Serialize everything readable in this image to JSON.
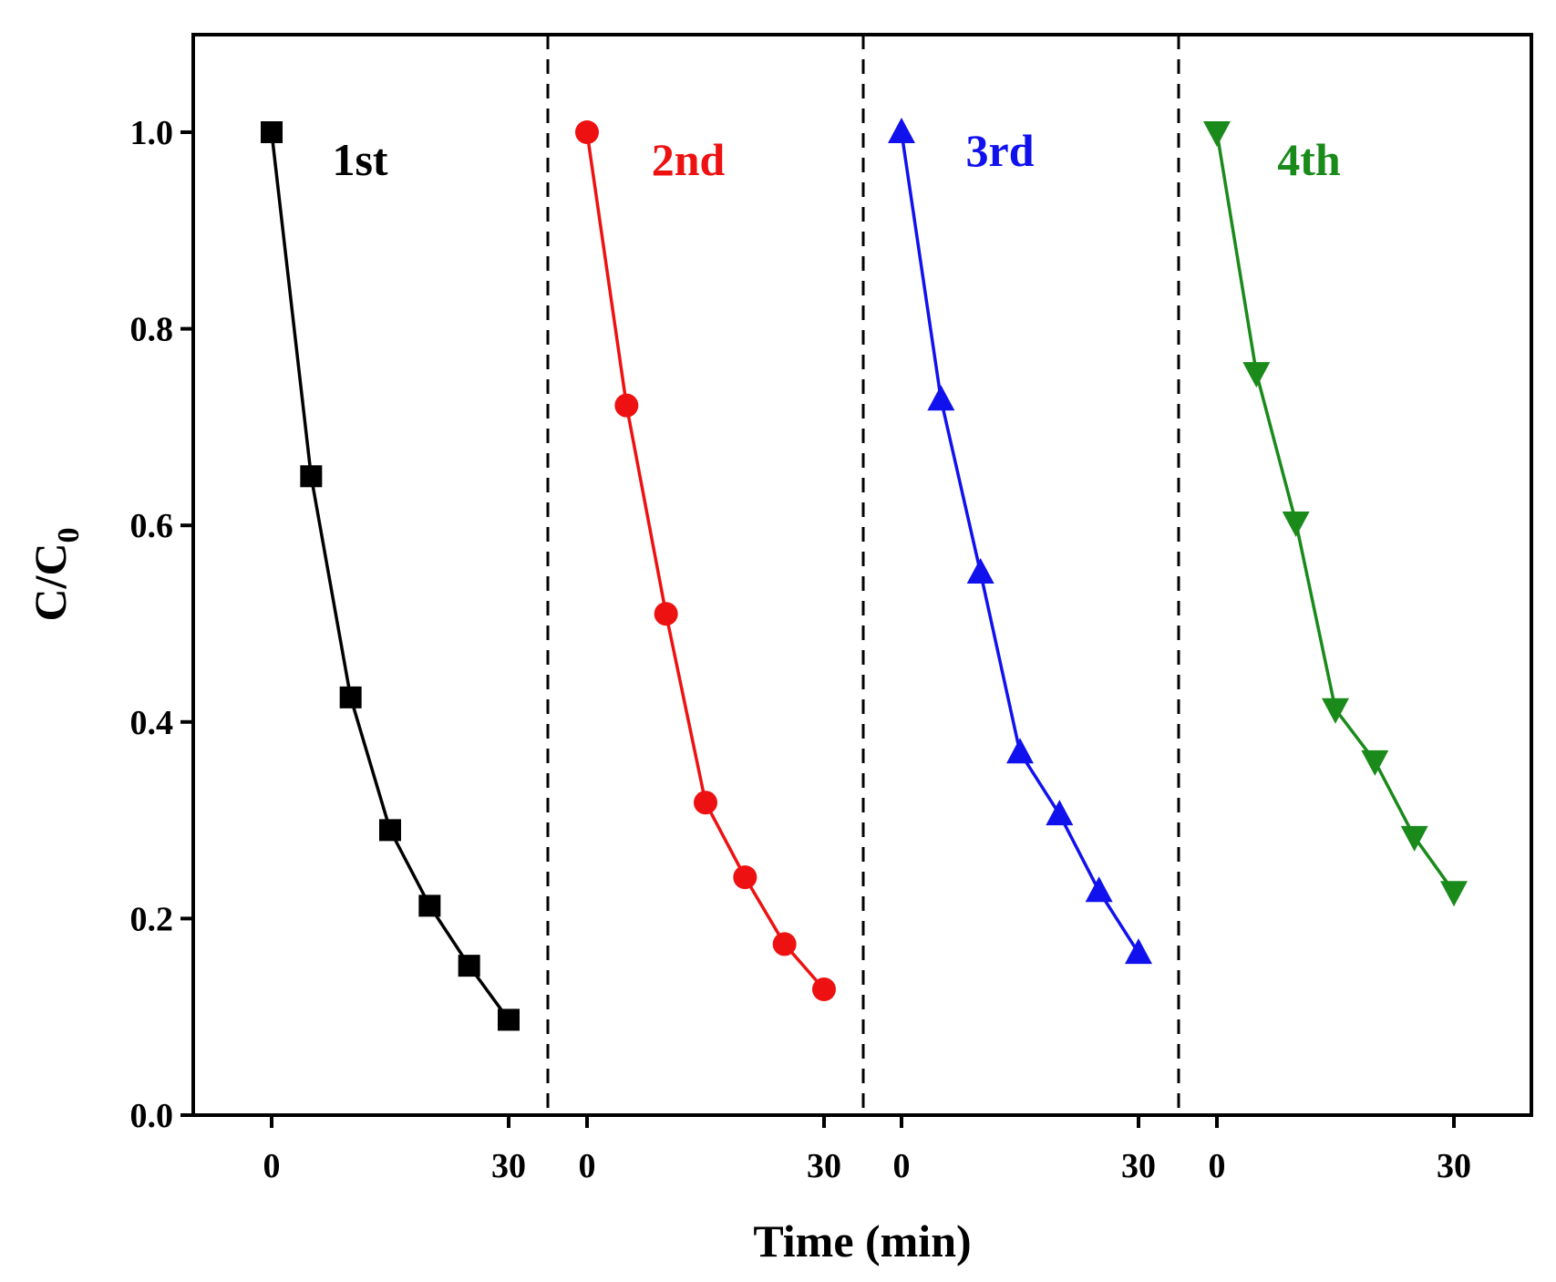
{
  "chart_data": {
    "type": "line",
    "title": "",
    "xlabel": "Time (min)",
    "ylabel_main": "C/C",
    "ylabel_sub": "0",
    "ylim": [
      0.0,
      1.1
    ],
    "y_ticks": [
      "0.0",
      "0.2",
      "0.4",
      "0.6",
      "0.8",
      "1.0"
    ],
    "y_tick_values": [
      0.0,
      0.2,
      0.4,
      0.6,
      0.8,
      1.0
    ],
    "grid": false,
    "x_values": [
      0,
      5,
      10,
      15,
      20,
      25,
      30
    ],
    "x_tick_labels": [
      "0",
      "30"
    ],
    "series": [
      {
        "name": "1st",
        "color": "#000000",
        "marker": "square",
        "values": [
          1.0,
          0.65,
          0.425,
          0.29,
          0.213,
          0.152,
          0.097
        ]
      },
      {
        "name": "2nd",
        "color": "#ee1111",
        "marker": "circle",
        "values": [
          1.0,
          0.722,
          0.51,
          0.318,
          0.242,
          0.174,
          0.128
        ]
      },
      {
        "name": "3rd",
        "color": "#1111ee",
        "marker": "triangle-up",
        "values": [
          1.0,
          0.728,
          0.552,
          0.369,
          0.306,
          0.228,
          0.165
        ]
      },
      {
        "name": "4th",
        "color": "#1a8a1a",
        "marker": "triangle-down",
        "values": [
          1.0,
          0.755,
          0.603,
          0.413,
          0.36,
          0.283,
          0.227
        ]
      }
    ]
  }
}
